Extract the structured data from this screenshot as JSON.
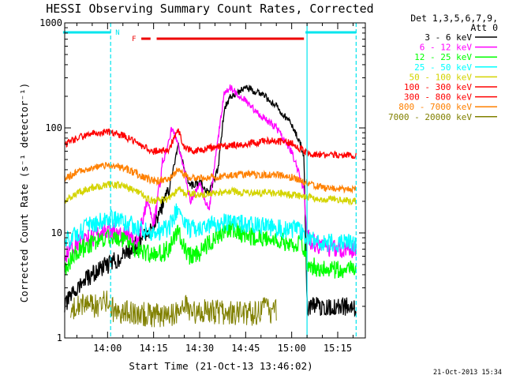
{
  "chart_data": {
    "type": "line",
    "title": "HESSI Observing Summary Count Rates, Corrected",
    "xlabel": "Start Time (21-Oct-13 13:46:02)",
    "ylabel": "Corrected Count Rate (s⁻¹ detector⁻¹)",
    "y_scale": "log",
    "ylim": [
      1,
      1000
    ],
    "xlim": [
      "13:46:02",
      "15:24:00"
    ],
    "y_ticks": [
      "1",
      "10",
      "100",
      "1000"
    ],
    "x_ticks": [
      "14:00",
      "14:15",
      "14:30",
      "14:45",
      "15:00",
      "15:15"
    ],
    "legend_header": [
      "Det 1,3,5,6,7,9,",
      "Att 0"
    ],
    "timestamp": "21-Oct-2013 15:34",
    "flag_labels": {
      "night": "N",
      "flare": "F"
    },
    "flags": {
      "night": [
        [
          "13:46",
          "14:01"
        ],
        [
          "15:05",
          "15:21"
        ]
      ],
      "flare": [
        [
          "14:11",
          "14:14"
        ],
        [
          "14:16",
          "15:04"
        ]
      ]
    },
    "night_boundaries": [
      "14:01",
      "15:05",
      "15:21"
    ],
    "series": [
      {
        "name": "3 - 6 keV",
        "color": "#000000",
        "x": [
          "13:46",
          "13:50",
          "13:55",
          "14:00",
          "14:05",
          "14:10",
          "14:15",
          "14:20",
          "14:23",
          "14:25",
          "14:27",
          "14:30",
          "14:33",
          "14:36",
          "14:38",
          "14:40",
          "14:45",
          "14:50",
          "14:55",
          "15:00",
          "15:03",
          "15:04",
          "15:05",
          "15:10",
          "15:15",
          "15:20",
          "15:21"
        ],
        "values": [
          2,
          3,
          4,
          5,
          6,
          8,
          12,
          25,
          70,
          40,
          28,
          30,
          24,
          40,
          150,
          200,
          240,
          215,
          160,
          110,
          70,
          50,
          2,
          2,
          2,
          2,
          2
        ]
      },
      {
        "name": "6 - 12 keV",
        "color": "#ff00ff",
        "x": [
          "13:46",
          "13:50",
          "13:55",
          "14:00",
          "14:05",
          "14:10",
          "14:13",
          "14:15",
          "14:18",
          "14:21",
          "14:23",
          "14:25",
          "14:27",
          "14:30",
          "14:33",
          "14:36",
          "14:38",
          "14:40",
          "14:45",
          "14:50",
          "14:55",
          "15:00",
          "15:03",
          "15:04",
          "15:05",
          "15:10",
          "15:15",
          "15:20",
          "15:21"
        ],
        "values": [
          6,
          8,
          9,
          11,
          10,
          9,
          20,
          12,
          45,
          100,
          70,
          40,
          20,
          30,
          16,
          80,
          210,
          240,
          180,
          130,
          100,
          60,
          32,
          25,
          9,
          7,
          7,
          7,
          7
        ]
      },
      {
        "name": "12 - 25 keV",
        "color": "#00ff00",
        "x": [
          "13:46",
          "13:50",
          "13:55",
          "14:00",
          "14:05",
          "14:10",
          "14:15",
          "14:20",
          "14:23",
          "14:25",
          "14:27",
          "14:30",
          "14:35",
          "14:40",
          "14:45",
          "14:50",
          "14:55",
          "15:00",
          "15:04",
          "15:05",
          "15:10",
          "15:15",
          "15:20",
          "15:21"
        ],
        "values": [
          4.5,
          6.5,
          8,
          9,
          8.5,
          7,
          6,
          7,
          11,
          7,
          6,
          6.5,
          9,
          11,
          9.5,
          9,
          8.5,
          8,
          7.5,
          5,
          4.5,
          4.5,
          4.5,
          4.5
        ]
      },
      {
        "name": "25 - 50 keV",
        "color": "#00ffff",
        "x": [
          "13:46",
          "13:50",
          "13:55",
          "14:00",
          "14:05",
          "14:10",
          "14:15",
          "14:20",
          "14:23",
          "14:25",
          "14:27",
          "14:30",
          "14:35",
          "14:40",
          "14:45",
          "14:50",
          "14:55",
          "15:00",
          "15:04",
          "15:05",
          "15:10",
          "15:15",
          "15:20",
          "15:21"
        ],
        "values": [
          8,
          10,
          12,
          14,
          13,
          11,
          10,
          11,
          18,
          12,
          11,
          11,
          12,
          13,
          12,
          12,
          11,
          11,
          10,
          9,
          8,
          8,
          8,
          8
        ]
      },
      {
        "name": "50 - 100 keV",
        "color": "#d4d400",
        "x": [
          "13:46",
          "13:50",
          "13:55",
          "14:00",
          "14:05",
          "14:10",
          "14:15",
          "14:20",
          "14:23",
          "14:25",
          "14:30",
          "14:35",
          "14:40",
          "14:45",
          "14:50",
          "14:55",
          "15:00",
          "15:05",
          "15:10",
          "15:15",
          "15:20",
          "15:21"
        ],
        "values": [
          20,
          24,
          27,
          29,
          28,
          24,
          20,
          21,
          26,
          24,
          23,
          24,
          25,
          24,
          24,
          24,
          23,
          22,
          21,
          21,
          20,
          20
        ]
      },
      {
        "name": "100 - 300 keV",
        "color": "#ff0000",
        "x": [
          "13:46",
          "13:50",
          "13:55",
          "14:00",
          "14:05",
          "14:10",
          "14:15",
          "14:20",
          "14:23",
          "14:25",
          "14:28",
          "14:30",
          "14:35",
          "14:40",
          "14:45",
          "14:50",
          "14:55",
          "15:00",
          "15:05",
          "15:10",
          "15:15",
          "15:20",
          "15:21"
        ],
        "values": [
          70,
          80,
          88,
          92,
          85,
          70,
          60,
          62,
          95,
          65,
          60,
          62,
          65,
          68,
          70,
          74,
          75,
          72,
          58,
          55,
          55,
          55,
          55
        ]
      },
      {
        "name": "300 - 800 keV",
        "color": "#ff0000",
        "x": [],
        "values": []
      },
      {
        "name": "800 - 7000 keV",
        "color": "#ff8000",
        "x": [
          "13:46",
          "13:50",
          "13:55",
          "14:00",
          "14:05",
          "14:10",
          "14:15",
          "14:20",
          "14:23",
          "14:25",
          "14:30",
          "14:35",
          "14:40",
          "14:45",
          "14:50",
          "14:55",
          "15:00",
          "15:05",
          "15:10",
          "15:15",
          "15:20",
          "15:21"
        ],
        "values": [
          33,
          38,
          42,
          44,
          42,
          36,
          31,
          33,
          40,
          35,
          33,
          34,
          36,
          36,
          36,
          36,
          34,
          30,
          27,
          26,
          26,
          26
        ]
      },
      {
        "name": "7000 - 20000 keV",
        "color": "#808000",
        "x": [
          "13:48",
          "13:50",
          "13:55",
          "14:00",
          "14:02",
          "14:22",
          "14:24",
          "14:27",
          "14:49",
          "14:50",
          "14:52",
          "14:53",
          "14:55"
        ],
        "values": [
          1.8,
          2.2,
          2.0,
          2.2,
          1.8,
          1.6,
          2.2,
          1.8,
          1.7,
          1.8,
          1.9,
          1.7,
          1.8
        ]
      }
    ]
  }
}
